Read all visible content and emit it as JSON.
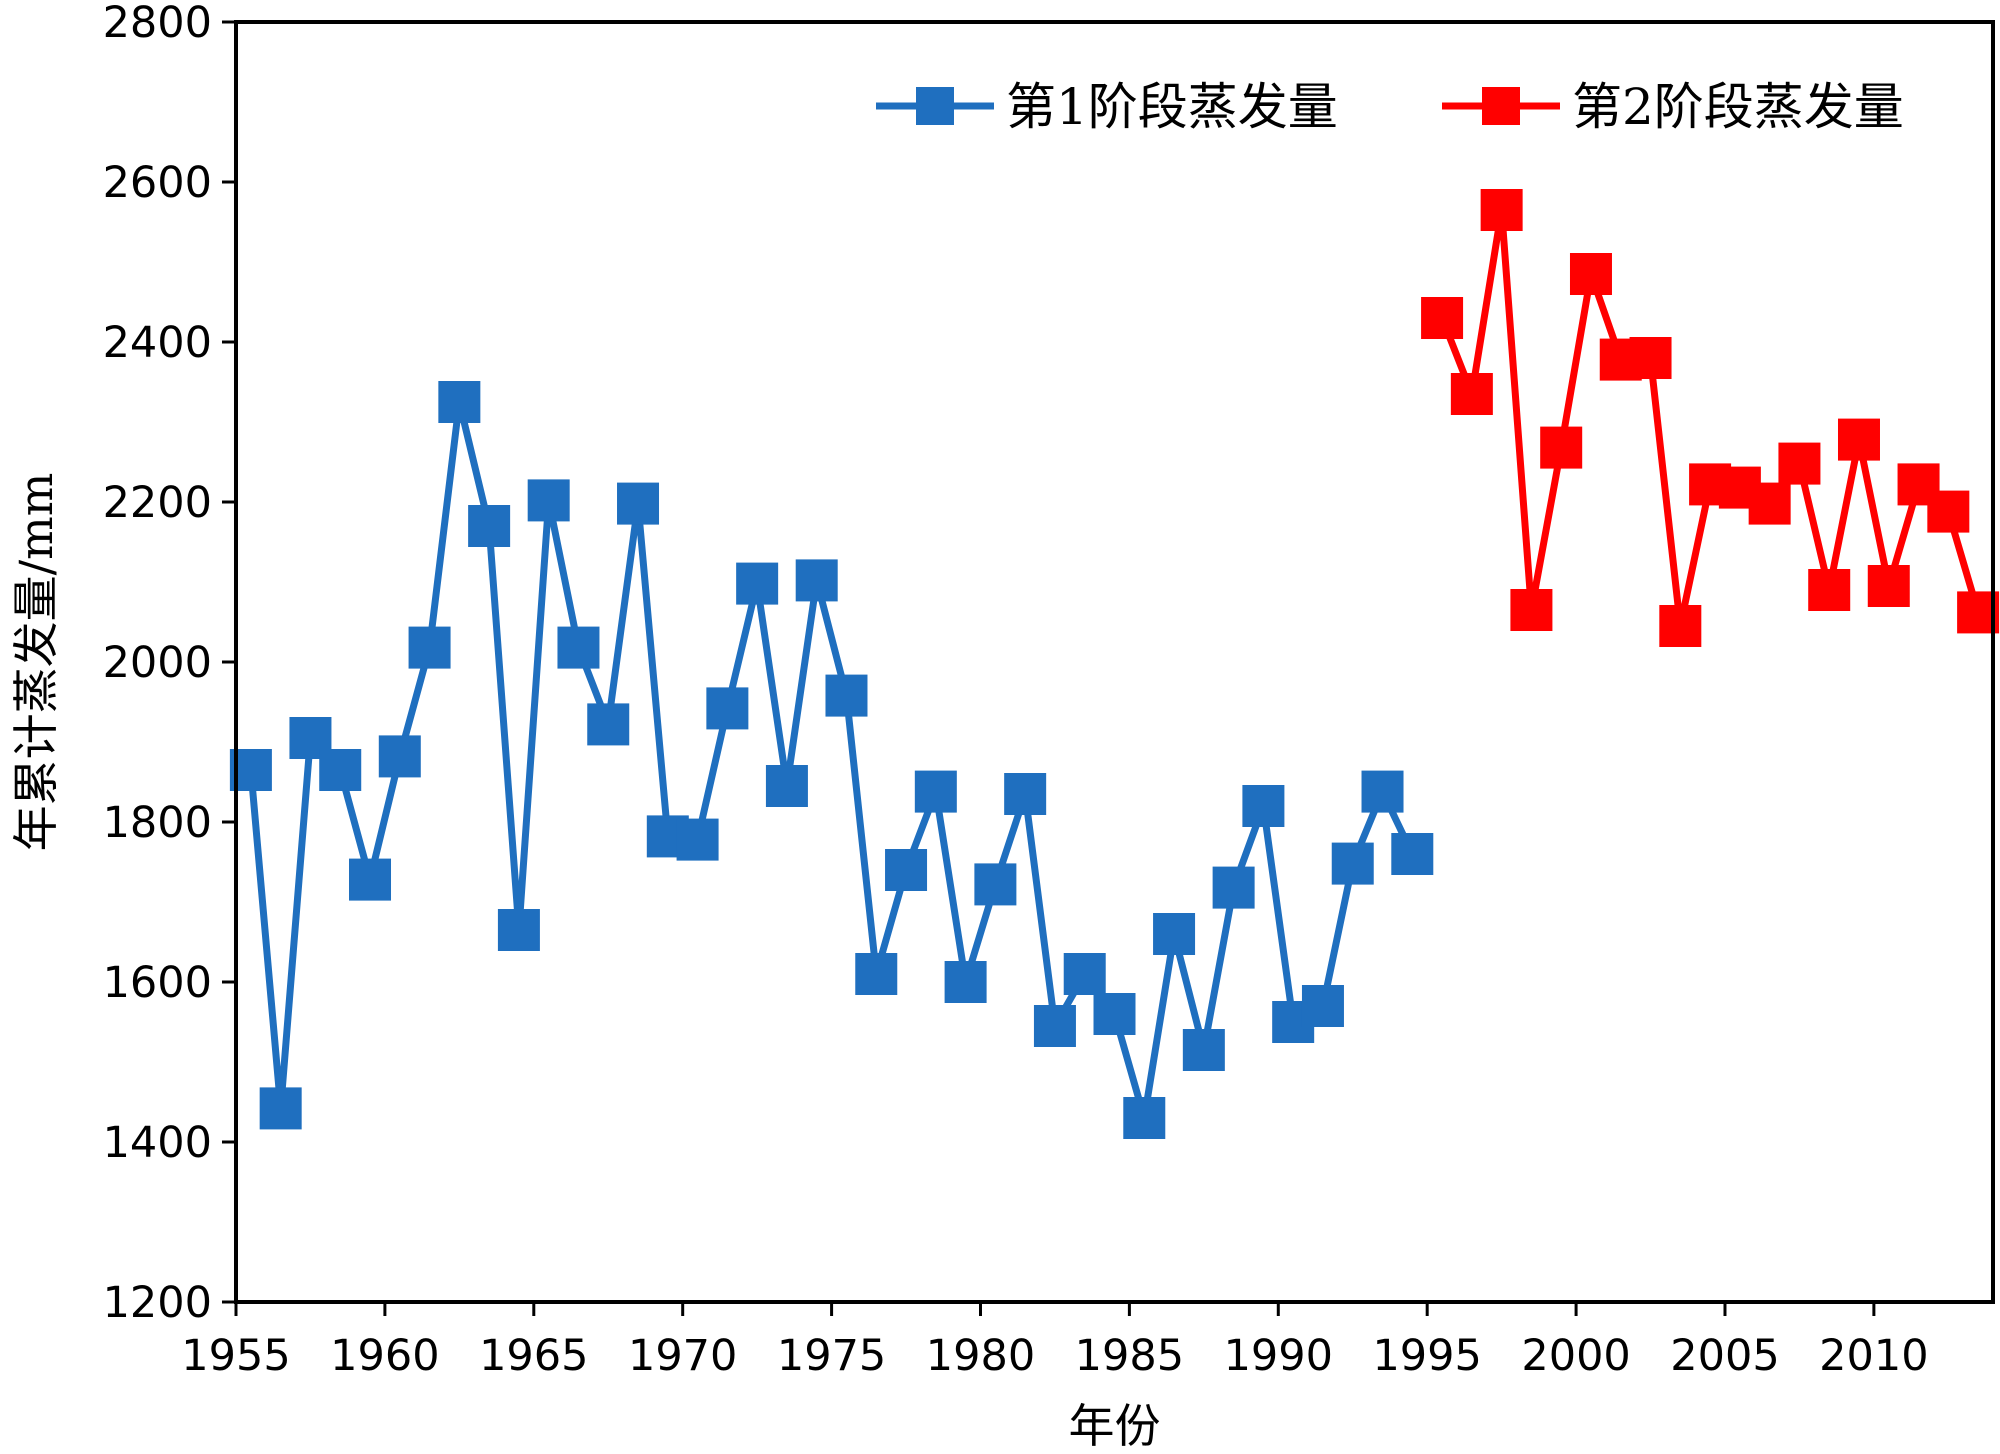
{
  "chart_data": {
    "type": "line",
    "xlabel": "年份",
    "ylabel": "年累计蒸发量/mm",
    "xlim": [
      1955,
      2014
    ],
    "ylim": [
      1200,
      2800
    ],
    "xticks": [
      1955,
      1960,
      1965,
      1970,
      1975,
      1980,
      1985,
      1990,
      1995,
      2000,
      2005,
      2010
    ],
    "yticks": [
      1200,
      1400,
      1600,
      1800,
      2000,
      2200,
      2400,
      2600,
      2800
    ],
    "grid": false,
    "legend_position": "top-right",
    "series": [
      {
        "name": "第1阶段蒸发量",
        "color": "#1f6fbf",
        "marker": "square",
        "x": [
          1955.5,
          1956.5,
          1957.5,
          1958.5,
          1959.5,
          1960.5,
          1961.5,
          1962.5,
          1963.5,
          1964.5,
          1965.5,
          1966.5,
          1967.5,
          1968.5,
          1969.5,
          1970.5,
          1971.5,
          1972.5,
          1973.5,
          1974.5,
          1975.5,
          1976.5,
          1977.5,
          1978.5,
          1979.5,
          1980.5,
          1981.5,
          1982.5,
          1983.5,
          1984.5,
          1985.5,
          1986.5,
          1987.5,
          1988.5,
          1989.5,
          1990.5,
          1991.5,
          1992.5,
          1993.5,
          1994.5
        ],
        "values": [
          1865,
          1442,
          1905,
          1865,
          1728,
          1882,
          2018,
          2325,
          2170,
          1665,
          2202,
          2018,
          1922,
          2198,
          1782,
          1778,
          1942,
          2098,
          1845,
          2102,
          1958,
          1610,
          1740,
          1838,
          1600,
          1722,
          1835,
          1545,
          1610,
          1560,
          1430,
          1660,
          1515,
          1718,
          1820,
          1550,
          1570,
          1748,
          1838,
          1760
        ]
      },
      {
        "name": "第2阶段蒸发量",
        "color": "#ff0000",
        "marker": "square",
        "x": [
          1995.5,
          1996.5,
          1997.5,
          1998.5,
          1999.5,
          2000.5,
          2001.5,
          2002.5,
          2003.5,
          2004.5,
          2005.5,
          2006.5,
          2007.5,
          2008.5,
          2009.5,
          2010.5,
          2011.5,
          2012.5,
          2013.5
        ],
        "values": [
          2430,
          2335,
          2565,
          2065,
          2268,
          2485,
          2378,
          2380,
          2045,
          2222,
          2218,
          2198,
          2248,
          2090,
          2278,
          2095,
          2222,
          2188,
          2062
        ]
      }
    ]
  }
}
